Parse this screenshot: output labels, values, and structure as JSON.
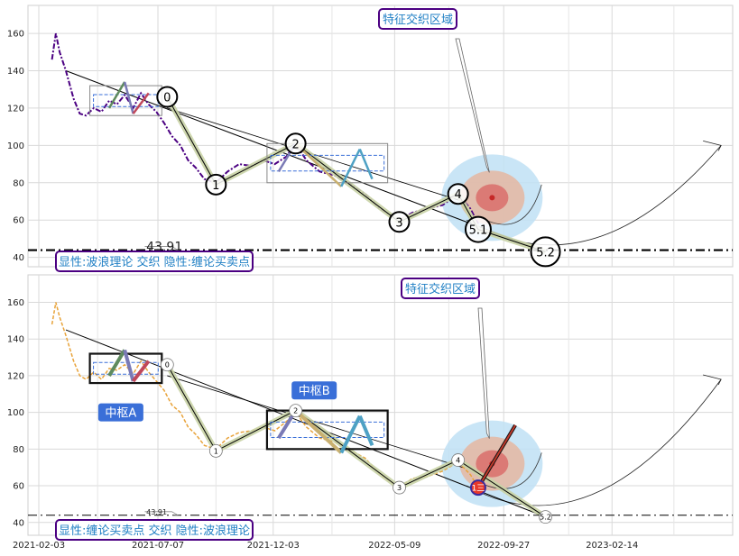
{
  "chart_data": [
    {
      "type": "line",
      "panel": "top",
      "ylim": [
        35,
        175
      ],
      "yticks": [
        "40",
        "60",
        "80",
        "100",
        "120",
        "140",
        "160"
      ],
      "colors": {
        "price": "#4b0082",
        "trend": "#000000",
        "zone_outer": "#bfe0f4",
        "zone_mid": "#e3b9a6",
        "zone_core": "#d95c5c",
        "label_border": "#4b0082",
        "label_text": "#1f7fc4"
      },
      "support_level": 43.91,
      "support_label": "43.91",
      "callout": "特征交织区域",
      "caption": "显性:波浪理论 交织 隐性:缠论买卖点",
      "wave_points": [
        {
          "label": "0",
          "x": "2021-07-19",
          "y": 126
        },
        {
          "label": "1",
          "x": "2021-09-20",
          "y": 79
        },
        {
          "label": "2",
          "x": "2022-01-01",
          "y": 101
        },
        {
          "label": "3",
          "x": "2022-05-15",
          "y": 59
        },
        {
          "label": "4",
          "x": "2022-07-30",
          "y": 74
        },
        {
          "label": "5.1",
          "x": "2022-08-25",
          "y": 55
        },
        {
          "label": "5.2",
          "x": "2022-11-20",
          "y": 43
        }
      ],
      "series": [
        {
          "values": [
            [
              "2021-02-20",
              146
            ],
            [
              "2021-02-25",
              160
            ],
            [
              "2021-03-02",
              150
            ],
            [
              "2021-03-10",
              140
            ],
            [
              "2021-03-20",
              125
            ],
            [
              "2021-03-28",
              117
            ],
            [
              "2021-04-05",
              116
            ],
            [
              "2021-04-15",
              120
            ],
            [
              "2021-04-25",
              118
            ],
            [
              "2021-05-05",
              124
            ],
            [
              "2021-05-15",
              122
            ],
            [
              "2021-05-25",
              127
            ],
            [
              "2021-06-05",
              120
            ],
            [
              "2021-06-15",
              128
            ],
            [
              "2021-06-25",
              122
            ],
            [
              "2021-07-05",
              118
            ],
            [
              "2021-07-15",
              112
            ],
            [
              "2021-07-25",
              105
            ],
            [
              "2021-08-05",
              100
            ],
            [
              "2021-08-15",
              92
            ],
            [
              "2021-08-25",
              88
            ],
            [
              "2021-09-05",
              82
            ],
            [
              "2021-09-20",
              80
            ],
            [
              "2021-10-05",
              86
            ],
            [
              "2021-10-20",
              90
            ],
            [
              "2021-11-05",
              89
            ],
            [
              "2021-11-20",
              92
            ],
            [
              "2021-12-05",
              90
            ],
            [
              "2021-12-20",
              94
            ],
            [
              "2022-01-01",
              101
            ],
            [
              "2022-01-15",
              92
            ],
            [
              "2022-02-01",
              86
            ],
            [
              "2022-02-20",
              84
            ],
            [
              "2022-03-10",
              80
            ],
            [
              "2022-04-01",
              74
            ],
            [
              "2022-04-20",
              66
            ],
            [
              "2022-05-15",
              60
            ],
            [
              "2022-06-01",
              64
            ],
            [
              "2022-06-20",
              66
            ],
            [
              "2022-07-10",
              68
            ],
            [
              "2022-07-30",
              74
            ],
            [
              "2022-08-15",
              66
            ],
            [
              "2022-08-25",
              58
            ]
          ]
        }
      ],
      "xlim": [
        "2021-01-20",
        "2023-07-20"
      ]
    },
    {
      "type": "line",
      "panel": "bottom",
      "ylim": [
        33,
        175
      ],
      "yticks": [
        "40",
        "60",
        "80",
        "100",
        "120",
        "140",
        "160"
      ],
      "xticks": [
        "2021-02-03",
        "2021-07-07",
        "2021-12-03",
        "2022-05-09",
        "2022-09-27",
        "2023-02-14"
      ],
      "colors": {
        "price": "#e8a33a",
        "trend": "#000000",
        "zone_outer": "#bfe0f4",
        "zone_mid": "#e3b9a6",
        "zone_core": "#d95c5c",
        "label_border": "#4b0082",
        "label_text": "#1f7fc4",
        "pivot_fill": "#3a6fd8",
        "marker": "#e8382a"
      },
      "support_level": 43.91,
      "support_label": "43.91",
      "callout": "特征交织区域",
      "caption": "显性:缠论买卖点 交织 隐性:波浪理论",
      "pivot_a": "中枢A",
      "pivot_b": "中枢B",
      "marker_label": "1三",
      "wave_points": [
        {
          "label": "0",
          "x": "2021-07-19",
          "y": 126
        },
        {
          "label": "1",
          "x": "2021-09-20",
          "y": 79
        },
        {
          "label": "2",
          "x": "2022-01-01",
          "y": 101
        },
        {
          "label": "3",
          "x": "2022-05-15",
          "y": 59
        },
        {
          "label": "4",
          "x": "2022-07-30",
          "y": 74
        },
        {
          "label": "5.2",
          "x": "2022-11-20",
          "y": 43
        }
      ],
      "series": [
        {
          "values": [
            [
              "2021-02-20",
              148
            ],
            [
              "2021-02-25",
              160
            ],
            [
              "2021-03-02",
              152
            ],
            [
              "2021-03-10",
              142
            ],
            [
              "2021-03-20",
              128
            ],
            [
              "2021-03-28",
              120
            ],
            [
              "2021-04-05",
              118
            ],
            [
              "2021-04-15",
              122
            ],
            [
              "2021-04-25",
              118
            ],
            [
              "2021-05-05",
              124
            ],
            [
              "2021-05-15",
              123
            ],
            [
              "2021-05-25",
              126
            ],
            [
              "2021-06-05",
              121
            ],
            [
              "2021-06-15",
              128
            ],
            [
              "2021-06-25",
              122
            ],
            [
              "2021-07-05",
              117
            ],
            [
              "2021-07-15",
              112
            ],
            [
              "2021-07-25",
              104
            ],
            [
              "2021-08-05",
              100
            ],
            [
              "2021-08-15",
              92
            ],
            [
              "2021-08-25",
              88
            ],
            [
              "2021-09-05",
              82
            ],
            [
              "2021-09-20",
              80
            ],
            [
              "2021-10-05",
              86
            ],
            [
              "2021-10-20",
              89
            ],
            [
              "2021-11-05",
              90
            ],
            [
              "2021-11-20",
              92
            ],
            [
              "2021-12-05",
              90
            ],
            [
              "2021-12-20",
              95
            ],
            [
              "2022-01-01",
              100
            ],
            [
              "2022-01-15",
              92
            ],
            [
              "2022-02-01",
              86
            ],
            [
              "2022-02-20",
              84
            ],
            [
              "2022-03-10",
              80
            ],
            [
              "2022-04-01",
              75
            ],
            [
              "2022-04-20",
              66
            ],
            [
              "2022-05-15",
              59
            ],
            [
              "2022-06-01",
              64
            ],
            [
              "2022-06-20",
              65
            ],
            [
              "2022-07-10",
              68
            ],
            [
              "2022-07-30",
              73
            ],
            [
              "2022-08-15",
              66
            ],
            [
              "2022-08-25",
              59
            ]
          ]
        }
      ],
      "xlim": [
        "2021-01-20",
        "2023-07-20"
      ]
    }
  ]
}
